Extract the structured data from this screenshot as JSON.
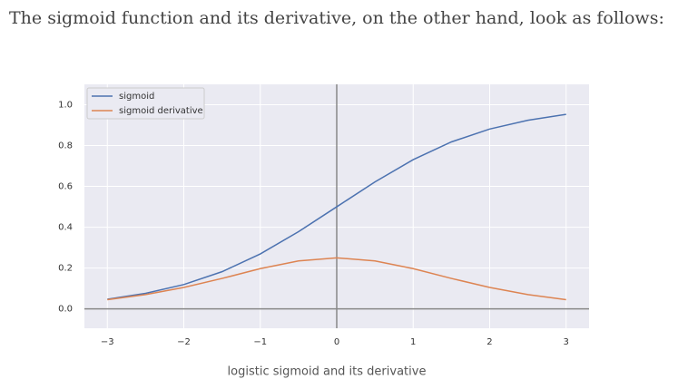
{
  "text": "The sigmoid function and its derivative, on the other hand, look as follows:",
  "chart_data": {
    "type": "line",
    "x": [
      -3,
      -2.5,
      -2,
      -1.5,
      -1,
      -0.5,
      0,
      0.5,
      1,
      1.5,
      2,
      2.5,
      3
    ],
    "series": [
      {
        "name": "sigmoid",
        "color": "#4c72b0",
        "values": [
          0.047,
          0.076,
          0.119,
          0.182,
          0.269,
          0.378,
          0.5,
          0.622,
          0.731,
          0.818,
          0.881,
          0.924,
          0.953
        ]
      },
      {
        "name": "sigmoid derivative",
        "color": "#dd8452",
        "values": [
          0.045,
          0.07,
          0.105,
          0.149,
          0.197,
          0.235,
          0.25,
          0.235,
          0.197,
          0.149,
          0.105,
          0.07,
          0.045
        ]
      }
    ],
    "xlim": [
      -3.3,
      3.3
    ],
    "ylim": [
      -0.095,
      1.1
    ],
    "xticks": [
      {
        "value": -3,
        "label": "−3"
      },
      {
        "value": -2,
        "label": "−2"
      },
      {
        "value": -1,
        "label": "−1"
      },
      0,
      1,
      2,
      3
    ],
    "yticks": [
      {
        "value": 0,
        "label": "0.0"
      },
      0.2,
      0.4,
      0.6,
      0.8,
      {
        "value": 1,
        "label": "1.0"
      }
    ],
    "grid": true,
    "legend": "upper left"
  },
  "caption": "logistic sigmoid and its derivative"
}
